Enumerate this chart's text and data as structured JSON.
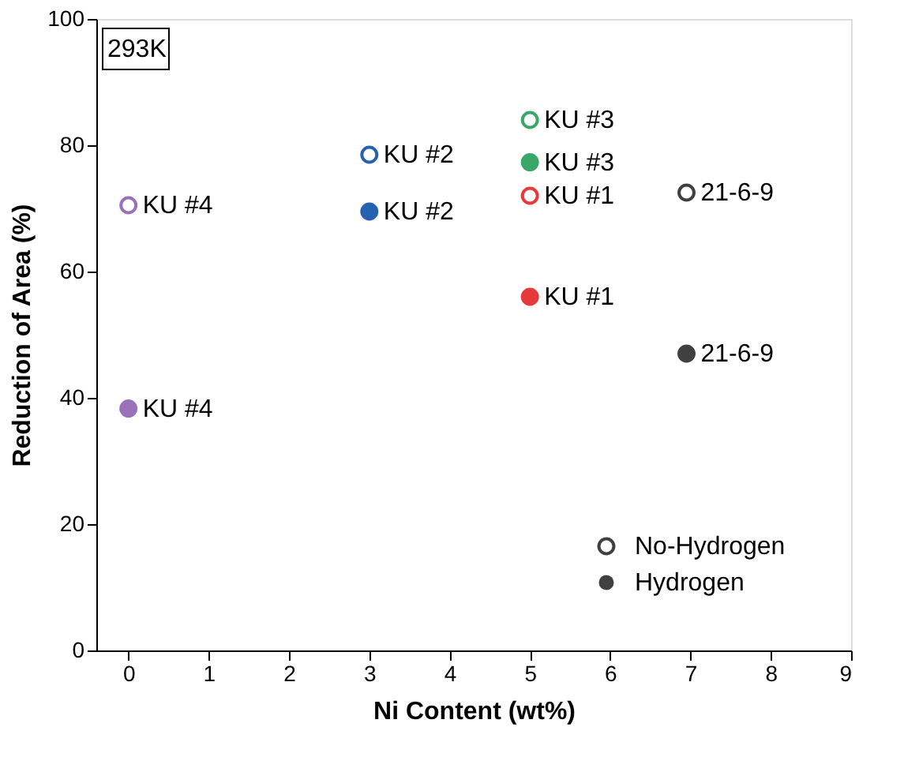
{
  "chart_data": {
    "type": "scatter",
    "xlabel": "Ni Content (wt%)",
    "ylabel": "Reduction of Area (%)",
    "xlim": [
      -0.4,
      9
    ],
    "xticks": [
      0,
      1,
      2,
      3,
      4,
      5,
      6,
      7,
      8,
      9
    ],
    "ylim": [
      0,
      100
    ],
    "yticks": [
      0,
      20,
      40,
      60,
      80,
      100
    ],
    "grid": false,
    "marker": "circle",
    "legend": "bottom right",
    "series": [
      {
        "name": "No-Hydrogen",
        "color": "#404040",
        "x": [
          0,
          3,
          5,
          5,
          6.95
        ],
        "values": [
          70.5,
          78.5,
          84,
          72,
          72.5
        ],
        "colors": [
          "#9b72b8",
          "#2563b0",
          "#3aa76a",
          "#e8393a",
          "#404040"
        ]
      },
      {
        "name": "Hydrogen",
        "color": "#404040",
        "x": [
          0,
          3,
          5,
          5,
          6.95
        ],
        "values": [
          38.3,
          69.5,
          77.3,
          56,
          47
        ],
        "colors": [
          "#9b72b8",
          "#2563b0",
          "#3aa76a",
          "#e8393a",
          "#404040"
        ]
      }
    ],
    "annotations": [
      "293K",
      {
        "text": "KU #4",
        "x": 0,
        "y": 70.5
      },
      {
        "text": "KU #2",
        "x": 3,
        "y": 78.5
      },
      {
        "text": "KU #3",
        "x": 5,
        "y": 84
      },
      {
        "text": "KU #1",
        "x": 5,
        "y": 72
      },
      {
        "text": "21-6-9",
        "x": 6.95,
        "y": 72.5
      },
      {
        "text": "KU #4",
        "x": 0,
        "y": 38.3
      },
      {
        "text": "KU #2",
        "x": 3,
        "y": 69.5
      },
      {
        "text": "KU #3",
        "x": 5,
        "y": 77.3
      },
      {
        "text": "KU #1",
        "x": 5,
        "y": 56
      },
      {
        "text": "21-6-9",
        "x": 6.95,
        "y": 47
      }
    ]
  }
}
